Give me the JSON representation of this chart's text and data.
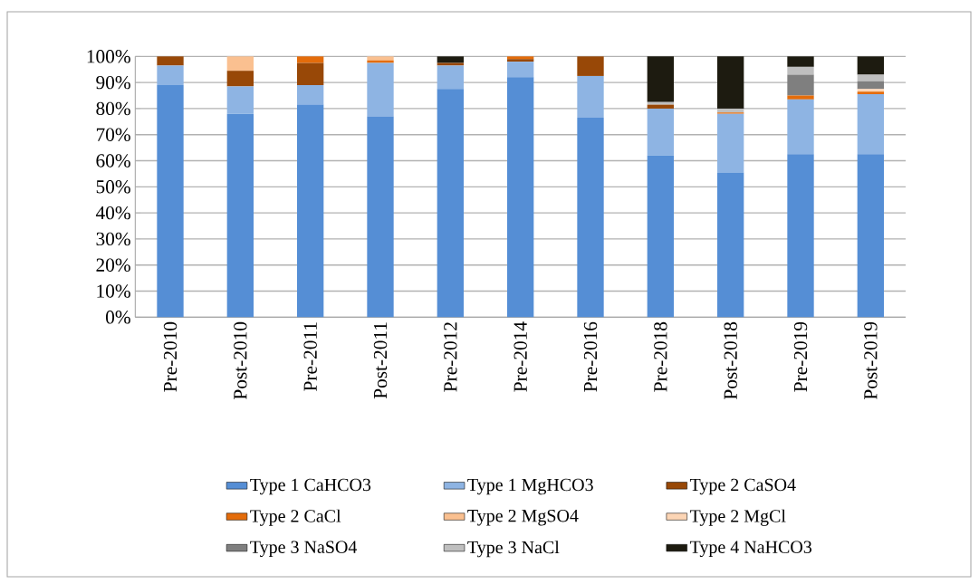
{
  "chart_data": {
    "type": "bar",
    "stacked": true,
    "grid": "y",
    "legend": "bottom",
    "categories": [
      "Pre-2010",
      "Post-2010",
      "Pre-2011",
      "Post-2011",
      "Pre-2012",
      "Pre-2014",
      "Pre-2016",
      "Pre-2018",
      "Post-2018",
      "Pre-2019",
      "Post-2019"
    ],
    "ylim": [
      0,
      100
    ],
    "yticks": [
      {
        "value": 0,
        "label": "0%"
      },
      {
        "value": 10,
        "label": "10%"
      },
      {
        "value": 20,
        "label": "20%"
      },
      {
        "value": 30,
        "label": "30%"
      },
      {
        "value": 40,
        "label": "40%"
      },
      {
        "value": 50,
        "label": "50%"
      },
      {
        "value": 60,
        "label": "60%"
      },
      {
        "value": 70,
        "label": "70%"
      },
      {
        "value": 80,
        "label": "80%"
      },
      {
        "value": 90,
        "label": "90%"
      },
      {
        "value": 100,
        "label": "100%"
      }
    ],
    "series": [
      {
        "name": "Type 1 CaHCO3",
        "color": "#558ed5",
        "values": [
          89,
          78,
          81.5,
          77,
          87.5,
          92,
          76.5,
          62,
          55.5,
          62.5,
          62.5
        ]
      },
      {
        "name": "Type 1 MgHCO3",
        "color": "#8eb4e3",
        "values": [
          7.5,
          10.5,
          7.5,
          20.5,
          9,
          6,
          16,
          18,
          22.5,
          21,
          23
        ]
      },
      {
        "name": "Type 2 CaSO4",
        "color": "#984807",
        "values": [
          3.5,
          6,
          8.5,
          0,
          1,
          1,
          7.5,
          1.5,
          0,
          0,
          0
        ]
      },
      {
        "name": "Type 2 CaCl",
        "color": "#e46c0a",
        "values": [
          0,
          0,
          2.5,
          1,
          0,
          1,
          0,
          0,
          0.5,
          1.5,
          1
        ]
      },
      {
        "name": "Type 2 MgSO4",
        "color": "#fac090",
        "values": [
          0,
          5.5,
          0,
          1.5,
          0,
          0,
          0,
          0,
          0,
          0,
          0
        ]
      },
      {
        "name": "Type 2 MgCl",
        "color": "#fcd5b5",
        "values": [
          0,
          0,
          0,
          0,
          0,
          0,
          0,
          0,
          0,
          0,
          1
        ]
      },
      {
        "name": "Type 3 NaSO4",
        "color": "#7f7f7f",
        "values": [
          0,
          0,
          0,
          0,
          0,
          0,
          0,
          0,
          0,
          8,
          3
        ]
      },
      {
        "name": "Type 3 NaCl",
        "color": "#bfbfbf",
        "values": [
          0,
          0,
          0,
          0,
          0,
          0,
          0,
          1,
          1.5,
          3,
          2.5
        ]
      },
      {
        "name": "Type 4 NaHCO3",
        "color": "#1d1b10",
        "values": [
          0,
          0,
          0,
          0,
          2.5,
          0,
          0,
          17.5,
          20,
          4,
          7
        ]
      }
    ]
  }
}
